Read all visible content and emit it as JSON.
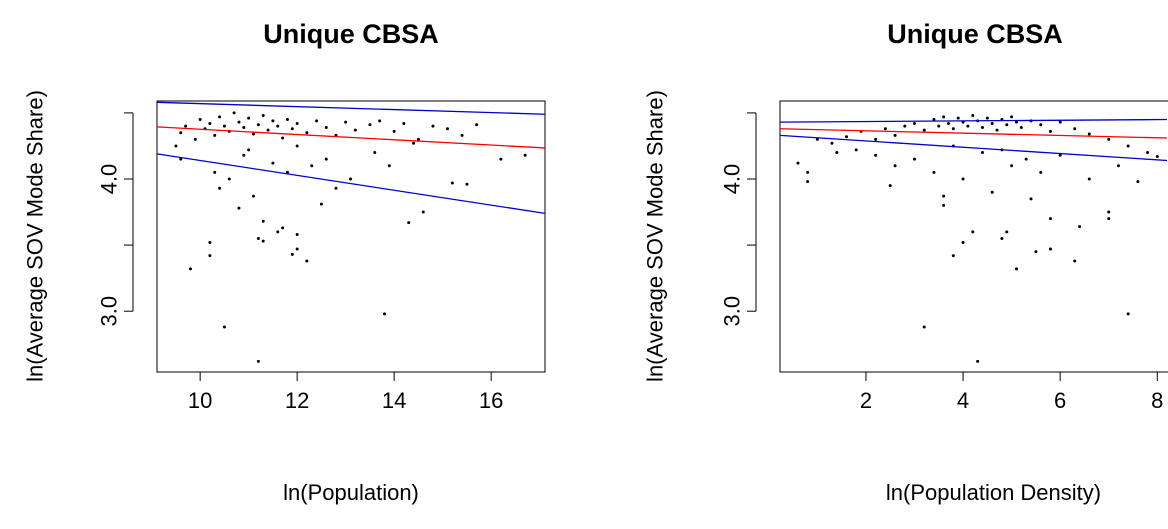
{
  "chart_data": [
    {
      "type": "scatter",
      "title": "Unique CBSA",
      "xlabel": "ln(Population)",
      "ylabel": "ln(Average SOV Mode Share)",
      "xlim": [
        9.11,
        17.11
      ],
      "ylim": [
        2.54,
        4.59
      ],
      "xticks": [
        10,
        12,
        14,
        16
      ],
      "yticks": [
        {
          "value": 3,
          "label": "3.0"
        },
        {
          "value": 4,
          "label": "4.0"
        }
      ],
      "yminor_ticks": [
        3.5,
        4.5
      ],
      "point_color": "#000000",
      "x": [
        9.5,
        9.6,
        9.7,
        9.9,
        10.0,
        10.1,
        10.2,
        10.3,
        10.4,
        10.5,
        10.6,
        10.7,
        10.8,
        10.9,
        11.0,
        11.1,
        11.2,
        11.3,
        11.4,
        11.5,
        11.6,
        11.7,
        11.8,
        11.9,
        12.0,
        12.2,
        12.4,
        12.6,
        12.8,
        13.0,
        13.2,
        13.5,
        13.7,
        14.0,
        14.2,
        14.5,
        14.8,
        15.1,
        15.4,
        15.7,
        16.2,
        16.7,
        15.2,
        15.5,
        13.9,
        10.3,
        10.6,
        11.0,
        12.3,
        13.1,
        12.8,
        11.5,
        10.4,
        9.6,
        12.0,
        13.6,
        14.4,
        10.9,
        11.8,
        12.6,
        9.8,
        10.5,
        11.2,
        13.8,
        10.2,
        10.2,
        11.2,
        11.3,
        12.2,
        11.9,
        12.0,
        14.3,
        14.6,
        11.6,
        11.7,
        12.0,
        11.3,
        11.1,
        12.5,
        10.8
      ],
      "y": [
        4.25,
        4.35,
        4.4,
        4.3,
        4.45,
        4.38,
        4.42,
        4.33,
        4.47,
        4.4,
        4.36,
        4.5,
        4.43,
        4.39,
        4.46,
        4.34,
        4.41,
        4.48,
        4.37,
        4.44,
        4.4,
        4.31,
        4.45,
        4.38,
        4.42,
        4.35,
        4.44,
        4.39,
        4.33,
        4.43,
        4.37,
        4.41,
        4.44,
        4.36,
        4.42,
        4.3,
        4.4,
        4.38,
        4.33,
        4.41,
        4.15,
        4.18,
        3.97,
        3.96,
        4.1,
        4.05,
        4.0,
        4.22,
        4.1,
        4.0,
        3.93,
        4.12,
        3.93,
        4.15,
        4.25,
        4.2,
        4.27,
        4.18,
        4.05,
        4.15,
        3.32,
        2.88,
        2.62,
        2.98,
        3.52,
        3.42,
        3.55,
        3.53,
        3.38,
        3.43,
        3.47,
        3.67,
        3.75,
        3.6,
        3.63,
        3.58,
        3.68,
        3.87,
        3.81,
        3.78
      ],
      "lines": [
        {
          "color": "#ff0000",
          "x": [
            9.11,
            17.11
          ],
          "y": [
            4.394,
            4.235
          ]
        },
        {
          "color": "#0000cc",
          "x": [
            9.11,
            17.11
          ],
          "y": [
            4.58,
            4.49
          ]
        },
        {
          "color": "#0000cc",
          "x": [
            9.11,
            17.11
          ],
          "y": [
            4.19,
            3.74
          ]
        }
      ]
    },
    {
      "type": "scatter",
      "title": "Unique CBSA",
      "xlabel": "ln(Population Density)",
      "ylabel": "ln(Average SOV Mode Share)",
      "xlim": [
        0.23,
        8.2
      ],
      "ylim": [
        2.54,
        4.59
      ],
      "xticks": [
        2,
        4,
        6,
        8
      ],
      "yticks": [
        {
          "value": 3,
          "label": "3.0"
        },
        {
          "value": 4,
          "label": "4.0"
        }
      ],
      "yminor_ticks": [
        3.5,
        4.5
      ],
      "point_color": "#000000",
      "x": [
        1.0,
        1.3,
        1.6,
        1.9,
        2.2,
        2.4,
        2.6,
        2.8,
        3.0,
        3.2,
        3.4,
        3.5,
        3.6,
        3.7,
        3.8,
        3.9,
        4.0,
        4.1,
        4.2,
        4.3,
        4.4,
        4.5,
        4.6,
        4.7,
        4.8,
        4.9,
        5.0,
        5.1,
        5.2,
        5.4,
        5.6,
        5.8,
        6.0,
        6.3,
        6.6,
        7.0,
        7.4,
        7.8,
        8.0,
        1.8,
        2.6,
        3.0,
        3.4,
        4.0,
        4.4,
        5.0,
        5.6,
        6.0,
        6.6,
        2.2,
        3.8,
        4.8,
        5.3,
        7.2,
        1.4,
        3.2,
        4.3,
        7.4,
        5.1,
        3.8,
        4.0,
        4.2,
        4.8,
        4.9,
        5.5,
        5.8,
        6.3,
        6.4,
        5.8,
        7.0,
        7.0,
        0.8,
        0.8,
        0.6,
        3.6,
        3.6,
        4.6,
        5.4,
        2.5,
        7.6
      ],
      "y": [
        4.3,
        4.27,
        4.32,
        4.36,
        4.3,
        4.38,
        4.33,
        4.4,
        4.42,
        4.37,
        4.45,
        4.4,
        4.47,
        4.42,
        4.38,
        4.46,
        4.43,
        4.4,
        4.48,
        4.44,
        4.39,
        4.46,
        4.42,
        4.37,
        4.45,
        4.41,
        4.47,
        4.43,
        4.39,
        4.44,
        4.41,
        4.36,
        4.43,
        4.38,
        4.34,
        4.3,
        4.25,
        4.2,
        4.17,
        4.22,
        4.1,
        4.15,
        4.05,
        4.0,
        4.2,
        4.1,
        4.05,
        4.18,
        4.0,
        4.18,
        4.25,
        4.22,
        4.15,
        4.1,
        4.2,
        2.88,
        2.62,
        2.98,
        3.32,
        3.42,
        3.52,
        3.6,
        3.55,
        3.6,
        3.45,
        3.47,
        3.38,
        3.64,
        3.7,
        3.7,
        3.75,
        3.98,
        4.05,
        4.12,
        3.87,
        3.8,
        3.9,
        3.85,
        3.95,
        3.98
      ],
      "lines": [
        {
          "color": "#ff0000",
          "x": [
            0.23,
            8.2
          ],
          "y": [
            4.38,
            4.31
          ]
        },
        {
          "color": "#0000cc",
          "x": [
            0.23,
            8.2
          ],
          "y": [
            4.43,
            4.45
          ]
        },
        {
          "color": "#0000cc",
          "x": [
            0.23,
            8.2
          ],
          "y": [
            4.33,
            4.14
          ]
        }
      ]
    }
  ]
}
